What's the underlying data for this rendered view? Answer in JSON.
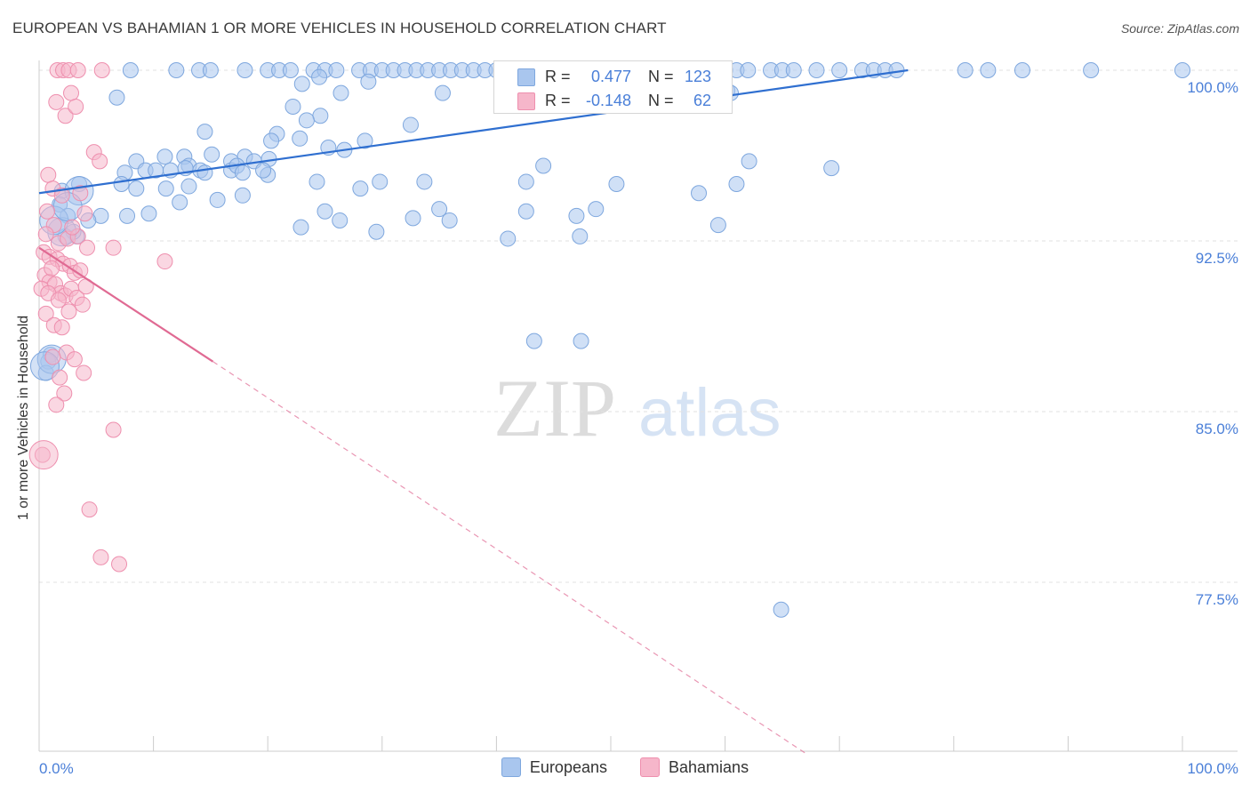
{
  "header": {
    "title": "EUROPEAN VS BAHAMIAN 1 OR MORE VEHICLES IN HOUSEHOLD CORRELATION CHART",
    "source": "Source: ZipAtlas.com"
  },
  "watermark": {
    "zip": "ZIP",
    "atlas": "atlas"
  },
  "legend_box": {
    "rows": [
      {
        "r_label": "R =",
        "r_value": "0.477",
        "n_label": "N =",
        "n_value": "123",
        "color": "#a9c6ee"
      },
      {
        "r_label": "R =",
        "r_value": "-0.148",
        "n_label": "N =",
        "n_value": "62",
        "color": "#f6b6ca"
      }
    ]
  },
  "chart_data": {
    "type": "scatter",
    "title": "EUROPEAN VS BAHAMIAN 1 OR MORE VEHICLES IN HOUSEHOLD CORRELATION CHART",
    "xlabel": "",
    "ylabel": "1 or more Vehicles in Household",
    "xlim": [
      0,
      100
    ],
    "ylim": [
      70,
      100.5
    ],
    "x_tick_labels": [
      "0.0%",
      "100.0%"
    ],
    "y_ticks": [
      77.5,
      85.0,
      92.5,
      100.0
    ],
    "y_tick_labels": [
      "77.5%",
      "85.0%",
      "92.5%",
      "100.0%"
    ],
    "grid": true,
    "legend_position": "bottom",
    "series": [
      {
        "name": "Europeans",
        "color": "#a9c6ee",
        "stroke": "#7ea7de",
        "trend_color": "#2f6fd0",
        "trend": {
          "x0": 0,
          "y0": 94.6,
          "x1": 76,
          "y1": 100.0
        },
        "points": [
          [
            8,
            100
          ],
          [
            12,
            100
          ],
          [
            14,
            100
          ],
          [
            15,
            100
          ],
          [
            18,
            100
          ],
          [
            20,
            100
          ],
          [
            21,
            100
          ],
          [
            22,
            100
          ],
          [
            24,
            100
          ],
          [
            25,
            100
          ],
          [
            26,
            100
          ],
          [
            28,
            100
          ],
          [
            29,
            100
          ],
          [
            30,
            100
          ],
          [
            31,
            100
          ],
          [
            32,
            100
          ],
          [
            33,
            100
          ],
          [
            34,
            100
          ],
          [
            35,
            100
          ],
          [
            36,
            100
          ],
          [
            37,
            100
          ],
          [
            38,
            100
          ],
          [
            39,
            100
          ],
          [
            40,
            100
          ],
          [
            41,
            100
          ],
          [
            42,
            100
          ],
          [
            43,
            100
          ],
          [
            44,
            100
          ],
          [
            45,
            100
          ],
          [
            46,
            100
          ],
          [
            47,
            100
          ],
          [
            48,
            100
          ],
          [
            49,
            100
          ],
          [
            50,
            100
          ],
          [
            51,
            100
          ],
          [
            55,
            100
          ],
          [
            58,
            100
          ],
          [
            60,
            100
          ],
          [
            61,
            100
          ],
          [
            62,
            100
          ],
          [
            64,
            100
          ],
          [
            65,
            100
          ],
          [
            66,
            100
          ],
          [
            68,
            100
          ],
          [
            70,
            100
          ],
          [
            72,
            100
          ],
          [
            73,
            100
          ],
          [
            74,
            100
          ],
          [
            75,
            100
          ],
          [
            81,
            100
          ],
          [
            83,
            100
          ],
          [
            86,
            100
          ],
          [
            92,
            100
          ],
          [
            100,
            100
          ],
          [
            24.5,
            99.7
          ],
          [
            23,
            99.4
          ],
          [
            28.8,
            99.5
          ],
          [
            26.4,
            99.0
          ],
          [
            35.3,
            99.0
          ],
          [
            60.2,
            99.1
          ],
          [
            6.8,
            98.8
          ],
          [
            22.2,
            98.4
          ],
          [
            24.6,
            98.0
          ],
          [
            23.4,
            97.8
          ],
          [
            32.5,
            97.6
          ],
          [
            20.8,
            97.2
          ],
          [
            14.5,
            97.3
          ],
          [
            22.8,
            97.0
          ],
          [
            20.3,
            96.9
          ],
          [
            28.5,
            96.9
          ],
          [
            26.7,
            96.5
          ],
          [
            25.3,
            96.6
          ],
          [
            15.1,
            96.3
          ],
          [
            20.1,
            96.1
          ],
          [
            11.0,
            96.2
          ],
          [
            12.7,
            96.2
          ],
          [
            18.0,
            96.2
          ],
          [
            18.8,
            96.0
          ],
          [
            16.8,
            96.0
          ],
          [
            13.1,
            95.8
          ],
          [
            8.5,
            96.0
          ],
          [
            7.5,
            95.5
          ],
          [
            9.3,
            95.6
          ],
          [
            10.2,
            95.6
          ],
          [
            11.5,
            95.6
          ],
          [
            14.1,
            95.6
          ],
          [
            12.8,
            95.7
          ],
          [
            16.8,
            95.6
          ],
          [
            17.3,
            95.8
          ],
          [
            7.2,
            95.0
          ],
          [
            8.5,
            94.8
          ],
          [
            11.1,
            94.8
          ],
          [
            13.1,
            94.9
          ],
          [
            14.5,
            95.5
          ],
          [
            17.8,
            95.5
          ],
          [
            20.0,
            95.4
          ],
          [
            19.6,
            95.6
          ],
          [
            24.3,
            95.1
          ],
          [
            28.1,
            94.8
          ],
          [
            29.8,
            95.1
          ],
          [
            33.7,
            95.1
          ],
          [
            3.5,
            95.0
          ],
          [
            2.0,
            94.7
          ],
          [
            15.6,
            94.3
          ],
          [
            5.4,
            93.6
          ],
          [
            9.6,
            93.7
          ],
          [
            4.3,
            93.4
          ],
          [
            3.3,
            92.7
          ],
          [
            3.0,
            92.9
          ],
          [
            2.3,
            92.7
          ],
          [
            22.9,
            93.1
          ],
          [
            26.3,
            93.4
          ],
          [
            25.0,
            93.8
          ],
          [
            29.5,
            92.9
          ],
          [
            32.7,
            93.5
          ],
          [
            35.0,
            93.9
          ],
          [
            35.9,
            93.4
          ],
          [
            41.0,
            92.6
          ],
          [
            42.6,
            93.8
          ],
          [
            47.0,
            93.6
          ],
          [
            47.3,
            92.7
          ],
          [
            59.4,
            93.2
          ],
          [
            61.0,
            95.0
          ],
          [
            62.1,
            96.0
          ],
          [
            69.3,
            95.7
          ],
          [
            44.1,
            95.8
          ],
          [
            42.6,
            95.1
          ],
          [
            17.8,
            94.5
          ],
          [
            12.3,
            94.2
          ],
          [
            7.7,
            93.6
          ],
          [
            48.7,
            93.9
          ],
          [
            1.8,
            94.1
          ],
          [
            2.5,
            93.6
          ],
          [
            50.5,
            95.0
          ],
          [
            43.3,
            88.1
          ],
          [
            47.4,
            88.1
          ],
          [
            57.7,
            94.6
          ],
          [
            60.5,
            99.0
          ],
          [
            64.9,
            76.3
          ],
          [
            1.0,
            87.5
          ],
          [
            0.8,
            87.2
          ],
          [
            0.6,
            86.7
          ]
        ],
        "big_points": [
          [
            2.0,
            92.9
          ],
          [
            1.1,
            87.3
          ],
          [
            1.3,
            93.4
          ],
          [
            0.5,
            87.0
          ],
          [
            3.5,
            94.7
          ],
          [
            2.5,
            94.0
          ]
        ]
      },
      {
        "name": "Bahamians",
        "color": "#f6b6ca",
        "stroke": "#ee8fae",
        "trend_color": "#e06a93",
        "trend": {
          "x0": 0,
          "y0": 92.2,
          "x1": 15.2,
          "y1": 87.2
        },
        "trend_dashed": {
          "x0": 15.2,
          "y0": 87.2,
          "x1": 67,
          "y1": 70
        },
        "points": [
          [
            1.6,
            100
          ],
          [
            2.1,
            100
          ],
          [
            2.6,
            100
          ],
          [
            3.4,
            100
          ],
          [
            5.5,
            100
          ],
          [
            2.8,
            99.0
          ],
          [
            1.5,
            98.6
          ],
          [
            2.3,
            98.0
          ],
          [
            3.2,
            98.4
          ],
          [
            4.8,
            96.4
          ],
          [
            5.3,
            96.0
          ],
          [
            0.8,
            95.4
          ],
          [
            1.2,
            94.8
          ],
          [
            2.0,
            94.5
          ],
          [
            3.6,
            94.6
          ],
          [
            4.0,
            93.7
          ],
          [
            0.7,
            93.8
          ],
          [
            1.3,
            93.2
          ],
          [
            0.6,
            92.8
          ],
          [
            1.7,
            92.4
          ],
          [
            2.5,
            92.6
          ],
          [
            3.4,
            92.7
          ],
          [
            4.2,
            92.2
          ],
          [
            6.5,
            92.2
          ],
          [
            0.4,
            92.0
          ],
          [
            0.9,
            91.8
          ],
          [
            1.6,
            91.7
          ],
          [
            2.1,
            91.5
          ],
          [
            2.7,
            91.4
          ],
          [
            3.1,
            91.1
          ],
          [
            3.6,
            91.2
          ],
          [
            11.0,
            91.6
          ],
          [
            0.5,
            91.0
          ],
          [
            0.9,
            90.7
          ],
          [
            1.4,
            90.6
          ],
          [
            1.9,
            90.2
          ],
          [
            2.3,
            90.1
          ],
          [
            2.8,
            90.4
          ],
          [
            3.3,
            90.0
          ],
          [
            4.1,
            90.5
          ],
          [
            0.2,
            90.4
          ],
          [
            0.8,
            90.2
          ],
          [
            1.7,
            89.9
          ],
          [
            2.6,
            89.4
          ],
          [
            3.8,
            89.7
          ],
          [
            0.6,
            89.3
          ],
          [
            1.3,
            88.8
          ],
          [
            2.0,
            88.7
          ],
          [
            2.4,
            87.6
          ],
          [
            1.2,
            87.4
          ],
          [
            3.1,
            87.3
          ],
          [
            3.9,
            86.7
          ],
          [
            1.8,
            86.5
          ],
          [
            2.2,
            85.8
          ],
          [
            1.5,
            85.3
          ],
          [
            6.5,
            84.2
          ],
          [
            0.3,
            83.1
          ],
          [
            4.4,
            80.7
          ],
          [
            7.0,
            78.3
          ],
          [
            5.4,
            78.6
          ],
          [
            2.9,
            93.1
          ],
          [
            1.1,
            91.3
          ]
        ],
        "big_points": [
          [
            0.4,
            83.1
          ]
        ]
      }
    ]
  },
  "bottom_legend": {
    "items": [
      {
        "label": "Europeans",
        "color": "#a9c6ee"
      },
      {
        "label": "Bahamians",
        "color": "#f6b6ca"
      }
    ]
  }
}
